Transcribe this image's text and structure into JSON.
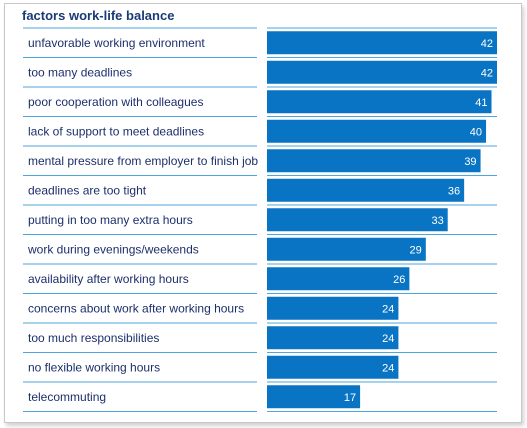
{
  "chart_data": {
    "type": "bar",
    "orientation": "horizontal",
    "title": "factors work-life balance",
    "xlabel": "",
    "ylabel": "",
    "xlim": [
      0,
      42
    ],
    "grid": false,
    "legend": "none",
    "bar_color": "#0a74c4",
    "separator_color": "#4da6dd",
    "categories": [
      "unfavorable working environment",
      "too many deadlines",
      "poor cooperation with colleagues",
      "lack of support to meet deadlines",
      "mental pressure from employer to finish job",
      "deadlines are too tight",
      "putting in too many extra hours",
      "work during evenings/weekends",
      "availability after working hours",
      "concerns about work after working hours",
      "too much responsibilities",
      "no flexible working hours",
      "telecommuting"
    ],
    "values": [
      42,
      42,
      41,
      40,
      39,
      36,
      33,
      29,
      26,
      24,
      24,
      24,
      17
    ]
  }
}
